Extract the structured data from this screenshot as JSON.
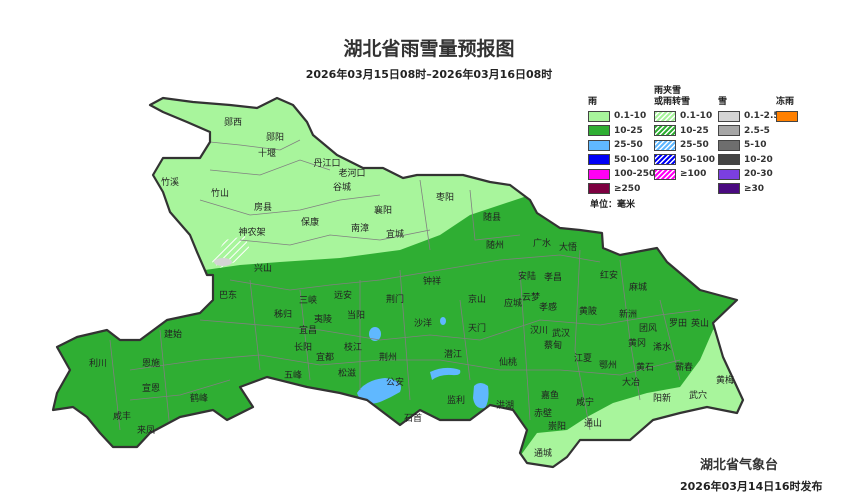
{
  "header": {
    "title": "湖北省雨雪量预报图",
    "period": "2026年03月15日08时–2026年03月16日08时"
  },
  "legend": {
    "groups": [
      {
        "title": "雨",
        "items": [
          {
            "label": "0.1-10",
            "color": "#a8f59c",
            "hatch": false
          },
          {
            "label": "10-25",
            "color": "#2fae33",
            "hatch": false
          },
          {
            "label": "25-50",
            "color": "#60b8ff",
            "hatch": false
          },
          {
            "label": "50-100",
            "color": "#0000f5",
            "hatch": false
          },
          {
            "label": "100-250",
            "color": "#ff00f5",
            "hatch": false
          },
          {
            "label": "≥250",
            "color": "#7d0040",
            "hatch": false
          }
        ]
      },
      {
        "title": "雨夹雪\n或雨转雪",
        "items": [
          {
            "label": "0.1-10",
            "color": "#a8f59c",
            "hatch": true
          },
          {
            "label": "10-25",
            "color": "#2fae33",
            "hatch": true
          },
          {
            "label": "25-50",
            "color": "#60b8ff",
            "hatch": true
          },
          {
            "label": "50-100",
            "color": "#0000f5",
            "hatch": true
          },
          {
            "label": "≥100",
            "color": "#ff00f5",
            "hatch": true
          }
        ]
      },
      {
        "title": "雪",
        "items": [
          {
            "label": "0.1-2.5",
            "color": "#d4d4d4",
            "hatch": false
          },
          {
            "label": "2.5-5",
            "color": "#a6a6a6",
            "hatch": false
          },
          {
            "label": "5-10",
            "color": "#6e6e6e",
            "hatch": false
          },
          {
            "label": "10-20",
            "color": "#444444",
            "hatch": false
          },
          {
            "label": "20-30",
            "color": "#7b3fe0",
            "hatch": false
          },
          {
            "label": "≥30",
            "color": "#4a0a80",
            "hatch": false
          }
        ]
      },
      {
        "title": "冻雨",
        "items": [
          {
            "label": "",
            "color": "#ff8000",
            "hatch": false
          }
        ]
      }
    ],
    "unit": "单位：毫米"
  },
  "map": {
    "colors": {
      "light_rain": "#a8f59c",
      "moderate_rain": "#2fae33",
      "heavy_rain": "#60b8ff",
      "snow": "#d4d4d4",
      "border": "#333333",
      "county_line": "#808080"
    },
    "cities": [
      "郧西",
      "郧阳",
      "十堰",
      "丹江口",
      "老河口",
      "谷城",
      "竹溪",
      "竹山",
      "房县",
      "保康",
      "南漳",
      "襄阳",
      "宜城",
      "枣阳",
      "神农架",
      "随县",
      "随州",
      "兴山",
      "巴东",
      "三峡",
      "远安",
      "秭归",
      "夷陵",
      "当阳",
      "宜昌",
      "长阳",
      "宜都",
      "枝江",
      "建始",
      "利川",
      "恩施",
      "宣恩",
      "鹤峰",
      "咸丰",
      "来凤",
      "五峰",
      "松滋",
      "广水",
      "大悟",
      "钟祥",
      "荆门",
      "京山",
      "安陆",
      "孝昌",
      "红安",
      "麻城",
      "云梦",
      "应城",
      "孝感",
      "黄陂",
      "新洲",
      "罗田",
      "英山",
      "团风",
      "沙洋",
      "天门",
      "汉川",
      "武汉",
      "黄冈",
      "浠水",
      "蔡甸",
      "荆州",
      "潜江",
      "仙桃",
      "江夏",
      "鄂州",
      "黄石",
      "蕲春",
      "大冶",
      "黄梅",
      "公安",
      "阳新",
      "武穴",
      "监利",
      "洪湖",
      "嘉鱼",
      "咸宁",
      "石首",
      "赤壁",
      "崇阳",
      "通山",
      "通城"
    ]
  },
  "footer": {
    "issuer": "湖北省气象台",
    "issued": "2026年03月14日16时发布"
  }
}
